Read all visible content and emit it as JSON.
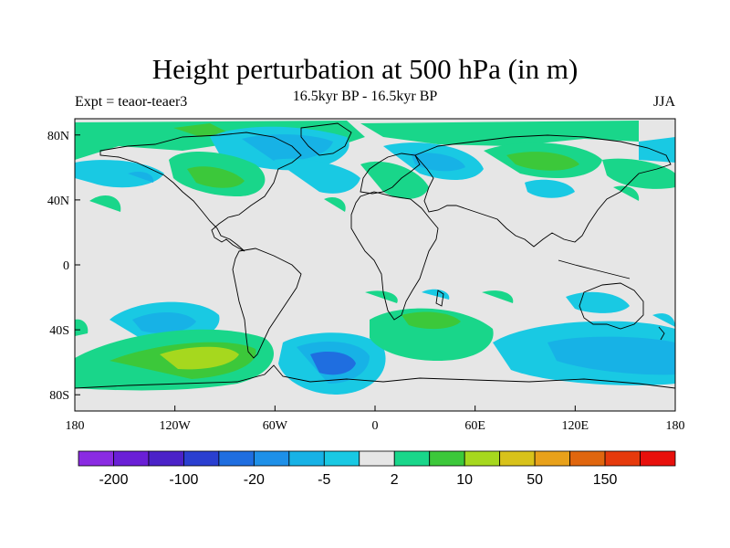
{
  "title": "Height perturbation at 500 hPa (in m)",
  "subtitle_left": "Expt = teaor-teaer3",
  "subtitle_center": "16.5kyr BP - 16.5kyr BP",
  "subtitle_right": "JJA",
  "map": {
    "projection": "cylindrical-equidistant",
    "lon_range": [
      -180,
      180
    ],
    "lat_range": [
      -90,
      90
    ],
    "lon_ticks": [
      {
        "value": -180,
        "label": "180"
      },
      {
        "value": -120,
        "label": "120W"
      },
      {
        "value": -60,
        "label": "60W"
      },
      {
        "value": 0,
        "label": "0"
      },
      {
        "value": 60,
        "label": "60E"
      },
      {
        "value": 120,
        "label": "120E"
      },
      {
        "value": 180,
        "label": "180"
      }
    ],
    "lat_ticks": [
      {
        "value": 80,
        "label": "80N"
      },
      {
        "value": 40,
        "label": "40N"
      },
      {
        "value": 0,
        "label": "0"
      },
      {
        "value": -40,
        "label": "40S"
      },
      {
        "value": -80,
        "label": "80S"
      }
    ],
    "background_color": "#e6e6e6",
    "coastline_color": "#000000"
  },
  "colorbar": {
    "colors": [
      "#8a2be2",
      "#6a1fd6",
      "#4b22c8",
      "#2a3fd0",
      "#1f6ee0",
      "#1e90e8",
      "#17b2e6",
      "#19c9e3",
      "#e6e6e6",
      "#19d68a",
      "#3cc83a",
      "#a6d81e",
      "#d8c21a",
      "#e8a11a",
      "#e0660e",
      "#e63a0c",
      "#e8100c"
    ],
    "labels": [
      "-200",
      "-100",
      "-20",
      "-5",
      "2",
      "10",
      "50",
      "150"
    ],
    "label_boundary_index": [
      1,
      3,
      5,
      7,
      9,
      11,
      13,
      15
    ]
  }
}
